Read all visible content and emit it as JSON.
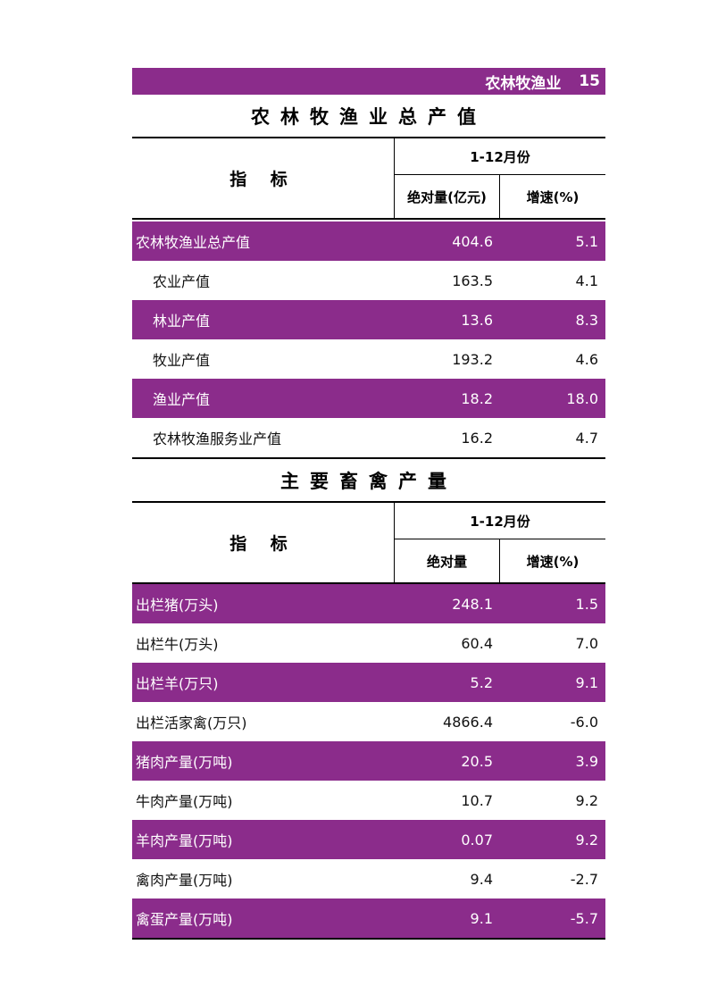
{
  "header": {
    "section": "农林牧渔业",
    "page_number": "15"
  },
  "table1": {
    "title": "农林牧渔业总产值",
    "col_indicator": "指 标",
    "col_period": "1-12月份",
    "col_abs": "绝对量(亿元)",
    "col_growth": "增速(%)",
    "rows": [
      {
        "name": "农林牧渔业总产值",
        "abs": "404.6",
        "growth": "5.1"
      },
      {
        "name": "农业产值",
        "abs": "163.5",
        "growth": "4.1"
      },
      {
        "name": "林业产值",
        "abs": "13.6",
        "growth": "8.3"
      },
      {
        "name": "牧业产值",
        "abs": "193.2",
        "growth": "4.6"
      },
      {
        "name": "渔业产值",
        "abs": "18.2",
        "growth": "18.0"
      },
      {
        "name": "农林牧渔服务业产值",
        "abs": "16.2",
        "growth": "4.7"
      }
    ]
  },
  "table2": {
    "title": "主要畜禽产量",
    "col_indicator": "指 标",
    "col_period": "1-12月份",
    "col_abs": "绝对量",
    "col_growth": "增速(%)",
    "rows": [
      {
        "name": "出栏猪(万头)",
        "abs": "248.1",
        "growth": "1.5"
      },
      {
        "name": "出栏牛(万头)",
        "abs": "60.4",
        "growth": "7.0"
      },
      {
        "name": "出栏羊(万只)",
        "abs": "5.2",
        "growth": "9.1"
      },
      {
        "name": "出栏活家禽(万只)",
        "abs": "4866.4",
        "growth": "-6.0"
      },
      {
        "name": "猪肉产量(万吨)",
        "abs": "20.5",
        "growth": "3.9"
      },
      {
        "name": "牛肉产量(万吨)",
        "abs": "10.7",
        "growth": "9.2"
      },
      {
        "name": "羊肉产量(万吨)",
        "abs": "0.07",
        "growth": "9.2"
      },
      {
        "name": "禽肉产量(万吨)",
        "abs": "9.4",
        "growth": "-2.7"
      },
      {
        "name": "禽蛋产量(万吨)",
        "abs": "9.1",
        "growth": "-5.7"
      }
    ]
  },
  "colors": {
    "accent": "#8b2c8b"
  }
}
